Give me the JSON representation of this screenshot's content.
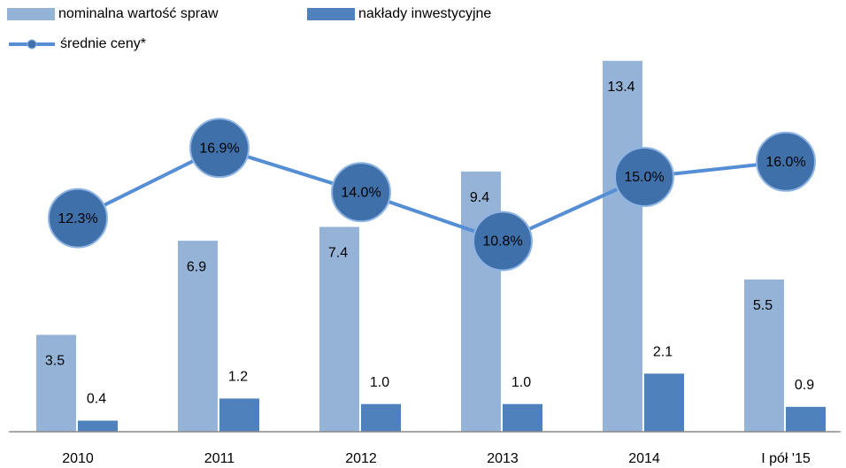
{
  "chart_data": {
    "type": "bar",
    "categories": [
      "2010",
      "2011",
      "2012",
      "2013",
      "2014",
      "I pół '15"
    ],
    "series": [
      {
        "name": "nominalna wartość spraw",
        "color": "#95b3d7",
        "values": [
          3.5,
          6.9,
          7.4,
          9.4,
          13.4,
          5.5
        ],
        "value_labels": [
          "3.5",
          "6.9",
          "7.4",
          "9.4",
          "13.4",
          "5.5"
        ]
      },
      {
        "name": "nakłady inwestycyjne",
        "color": "#4f81bd",
        "values": [
          0.4,
          1.2,
          1.0,
          1.0,
          2.1,
          0.9
        ],
        "value_labels": [
          "0.4",
          "1.2",
          "1.0",
          "1.0",
          "2.1",
          "0.9"
        ]
      },
      {
        "name": "średnie ceny*",
        "type": "line",
        "axis": "y2",
        "color": "#558ed5",
        "marker_color": "#3f70aa",
        "values": [
          12.3,
          16.9,
          14.0,
          10.8,
          15.0,
          16.0
        ],
        "value_labels": [
          "12.3%",
          "16.9%",
          "14.0%",
          "10.8%",
          "15.0%",
          "16.0%"
        ]
      }
    ],
    "ylim": [
      0,
      14
    ],
    "y2lim": [
      -1.7,
      23.7
    ],
    "legend": "top-left"
  }
}
